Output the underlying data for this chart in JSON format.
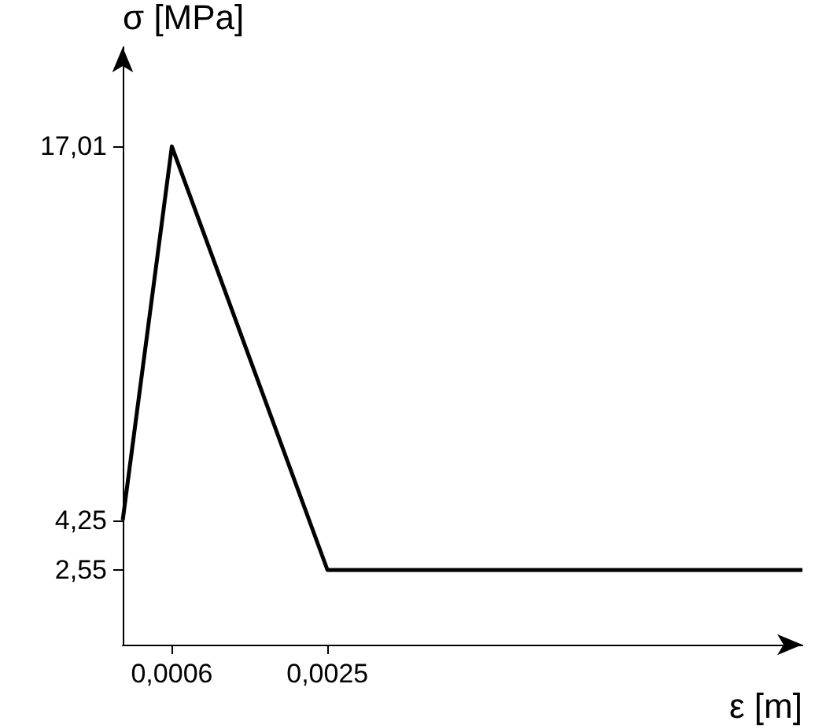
{
  "chart_data": {
    "type": "line",
    "xlabel": "ε [m]",
    "ylabel": "σ [MPa]",
    "x": [
      0,
      0.0006,
      0.0025,
      0.0083
    ],
    "series": [
      {
        "color": "#000000",
        "values": [
          4.25,
          17.01,
          2.55,
          2.55
        ]
      }
    ],
    "xlim": [
      0,
      0.0083
    ],
    "ylim": [
      0,
      20.4
    ],
    "xticks": [
      {
        "value": 0.0006,
        "label": "0,0006"
      },
      {
        "value": 0.0025,
        "label": "0,0025"
      }
    ],
    "yticks": [
      {
        "value": 2.55,
        "label": "2,55"
      },
      {
        "value": 4.25,
        "label": "4,25"
      },
      {
        "value": 17.01,
        "label": "17,01"
      }
    ],
    "grid": false,
    "marker": "none",
    "line_style": "solid"
  }
}
